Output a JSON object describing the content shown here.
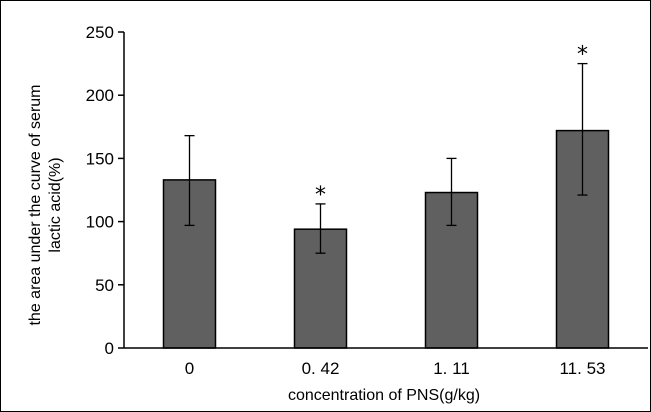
{
  "chart_data": {
    "type": "bar",
    "categories": [
      "0",
      "0. 42",
      "1. 11",
      "11. 53"
    ],
    "values": [
      133,
      94,
      123,
      172
    ],
    "error_bars": [
      {
        "low": 97,
        "high": 168
      },
      {
        "low": 75,
        "high": 114
      },
      {
        "low": 97,
        "high": 150
      },
      {
        "low": 121,
        "high": 225
      }
    ],
    "significance": [
      "",
      "*",
      "",
      "*"
    ],
    "ylim": [
      0,
      250
    ],
    "yticks": [
      0,
      50,
      100,
      150,
      200,
      250
    ],
    "ylabel_line1": "the area under the curve of serum",
    "ylabel_line2": "lactic acid(%)",
    "xlabel": "concentration of PNS(g/kg)",
    "grid": false,
    "bar_color": "#606060"
  }
}
